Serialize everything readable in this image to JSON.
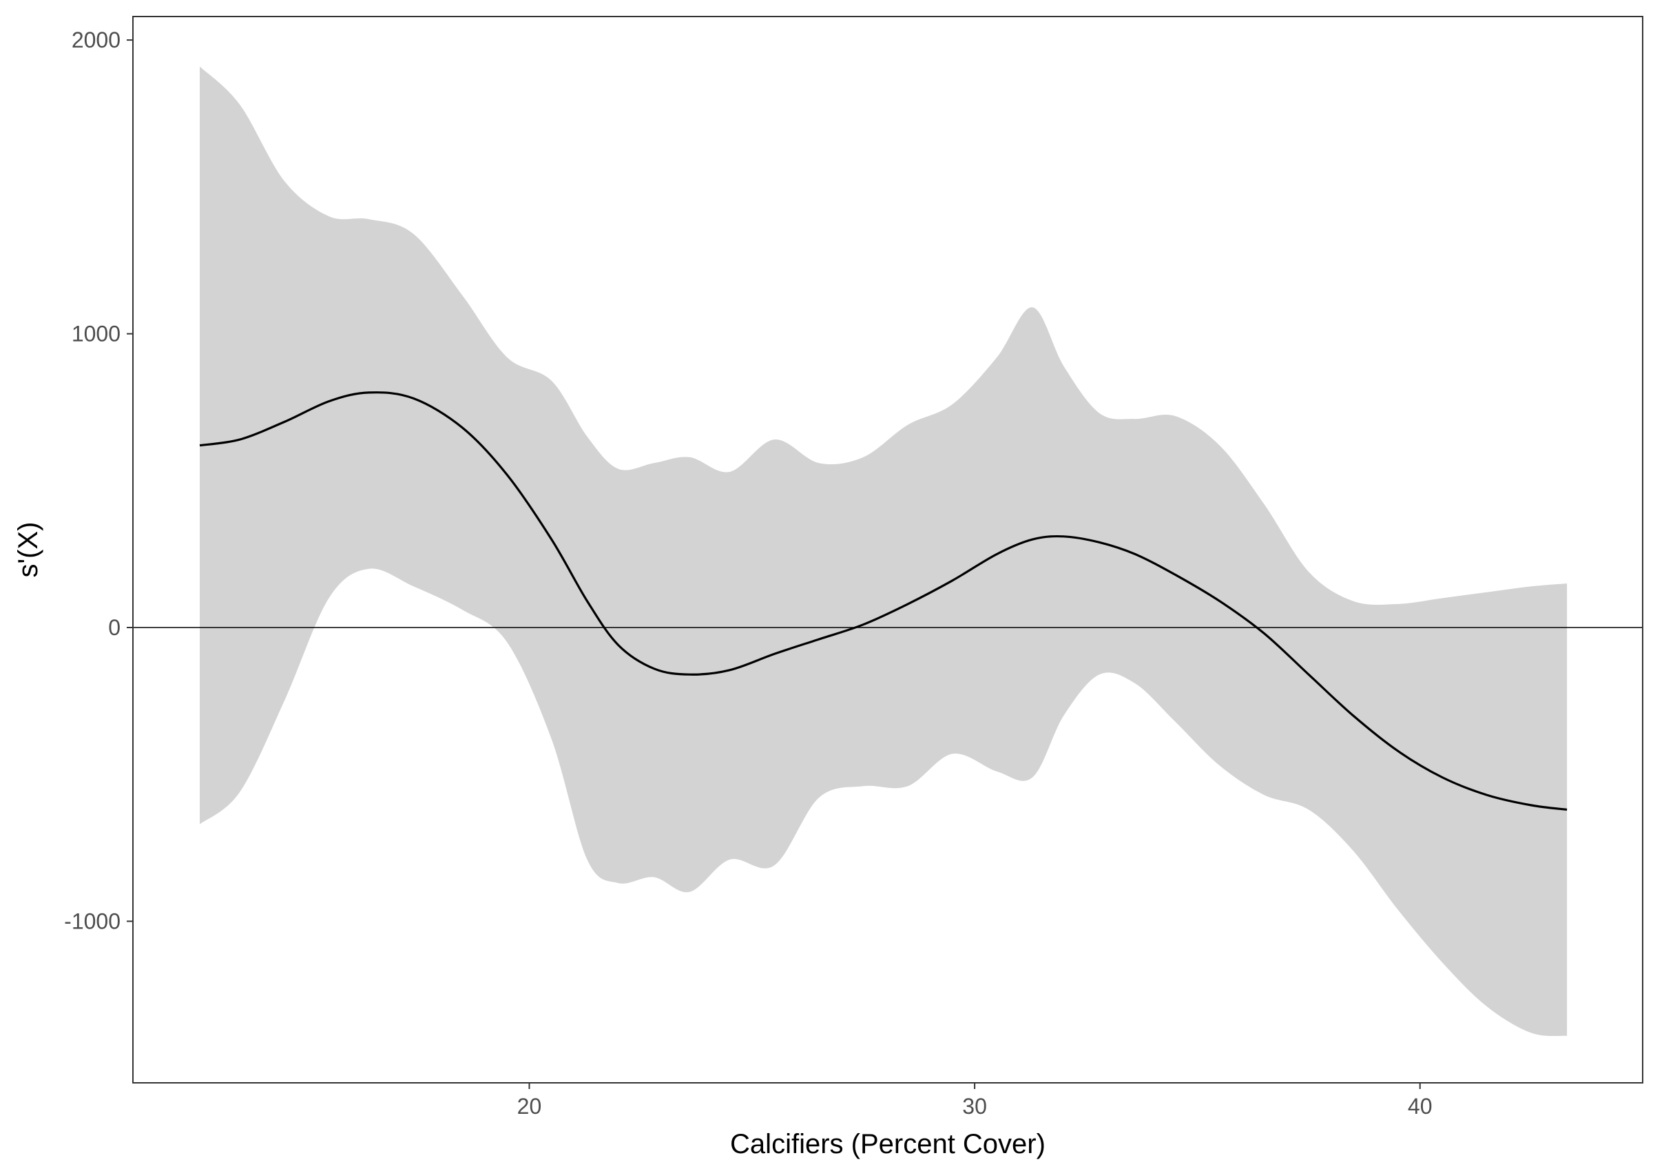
{
  "chart_data": {
    "type": "line",
    "xlabel": "Calcifiers (Percent Cover)",
    "ylabel": "s'(X)",
    "xlim": [
      11.1,
      45.0
    ],
    "ylim": [
      -1550,
      2080
    ],
    "xticks": [
      20,
      30,
      40
    ],
    "yticks": [
      -1000,
      0,
      1000,
      2000
    ],
    "xtick_labels": [
      "20",
      "30",
      "40"
    ],
    "ytick_labels": [
      "-1000",
      "0",
      "1000",
      "2000"
    ],
    "grid": false,
    "reference_line_y": 0,
    "colors": {
      "band": "#d3d3d3",
      "line": "#000000",
      "refline": "#000000",
      "panel_border": "#333333"
    },
    "series": [
      {
        "x": [
          12.6,
          13.5,
          14.5,
          15.5,
          16.4,
          17.4,
          18.5,
          19.5,
          20.5,
          21.3,
          22.0,
          22.8,
          23.6,
          24.5,
          25.5,
          26.5,
          27.5,
          28.5,
          29.5,
          30.5,
          31.3,
          32.0,
          32.8,
          33.6,
          34.5,
          35.5,
          36.5,
          37.5,
          38.5,
          39.5,
          40.5,
          41.5,
          42.5,
          43.3
        ],
        "y": [
          620,
          640,
          700,
          770,
          800,
          780,
          680,
          520,
          300,
          90,
          -60,
          -140,
          -160,
          -145,
          -90,
          -40,
          10,
          80,
          160,
          250,
          300,
          310,
          290,
          250,
          180,
          90,
          -20,
          -160,
          -300,
          -420,
          -510,
          -570,
          -605,
          -620
        ],
        "lower": [
          -670,
          -560,
          -250,
          100,
          200,
          140,
          60,
          -50,
          -380,
          -790,
          -870,
          -850,
          -900,
          -790,
          -810,
          -580,
          -540,
          -540,
          -430,
          -490,
          -510,
          -300,
          -160,
          -190,
          -320,
          -470,
          -570,
          -620,
          -760,
          -960,
          -1140,
          -1290,
          -1380,
          -1390
        ],
        "upper": [
          1910,
          1780,
          1520,
          1400,
          1390,
          1340,
          1130,
          920,
          840,
          650,
          540,
          560,
          580,
          530,
          640,
          560,
          580,
          690,
          760,
          920,
          1090,
          890,
          730,
          710,
          720,
          620,
          420,
          190,
          90,
          80,
          100,
          120,
          140,
          150
        ]
      }
    ]
  }
}
